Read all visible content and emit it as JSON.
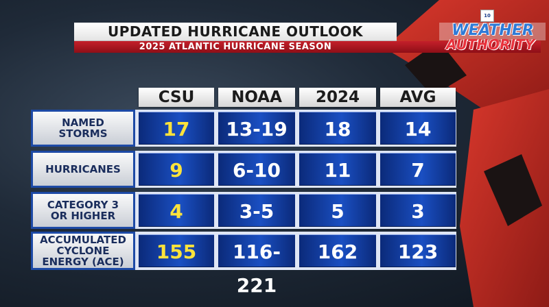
{
  "header": {
    "title": "UPDATED HURRICANE OUTLOOK",
    "subtitle": "2025 ATLANTIC HURRICANE SEASON"
  },
  "logo": {
    "line1": "WEATHER",
    "line2": "AUTHORITY",
    "badge": "10"
  },
  "table": {
    "columns": [
      "CSU",
      "NOAA",
      "2024",
      "AVG"
    ],
    "rows": [
      {
        "label": "NAMED\nSTORMS",
        "values": [
          "17",
          "13-19",
          "18",
          "14"
        ]
      },
      {
        "label": "HURRICANES",
        "values": [
          "9",
          "6-10",
          "11",
          "7"
        ]
      },
      {
        "label": "CATEGORY 3\nOR HIGHER",
        "values": [
          "4",
          "3-5",
          "5",
          "3"
        ]
      },
      {
        "label": "ACCUMULATED\nCYCLONE\nENERGY (ACE)",
        "values": [
          "155",
          "116-221",
          "162",
          "123"
        ]
      }
    ]
  },
  "colors": {
    "highlight": "#ffe33b",
    "cell_blue": "#1a4fc2",
    "brand_red": "#c4202a"
  }
}
